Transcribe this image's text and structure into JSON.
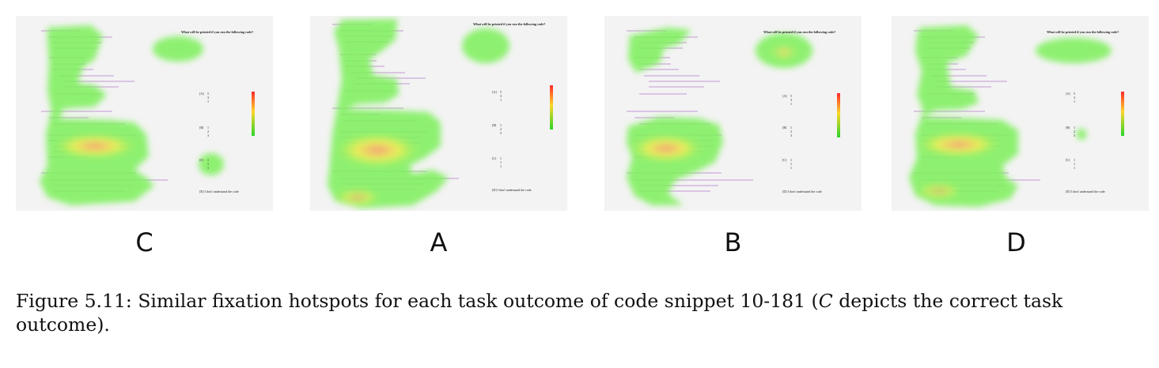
{
  "panels": [
    {
      "label": "C",
      "header_lines": [
        "",
        ""
      ],
      "question": "What will be printed if you run the following code?",
      "options": [
        "[A]",
        "[B]",
        "[C]",
        "[D] I don't understand the code"
      ],
      "option_values": [
        [
          "5",
          "3",
          "1"
        ],
        [
          "1",
          "2",
          "3"
        ],
        [
          "1",
          "1",
          "1"
        ]
      ],
      "legend": {
        "max": "",
        "axis": "",
        "min": ""
      }
    },
    {
      "label": "A",
      "header_lines": [],
      "question": "What will be printed if you run the following code?",
      "options": [
        "[A]",
        "[B]",
        "[C]",
        "[D] I don't understand the code"
      ],
      "option_values": [
        [
          "5",
          "3",
          "1"
        ],
        [
          "1",
          "2",
          "3"
        ],
        [
          "1",
          "1",
          "1"
        ]
      ],
      "legend": {
        "max": "",
        "axis": "",
        "min": ""
      }
    },
    {
      "label": "B",
      "header_lines": [
        "",
        ""
      ],
      "question": "What will be printed if you run the following code?",
      "options": [
        "[A]",
        "[B]",
        "[C]",
        "[D] I don't understand the code"
      ],
      "option_values": [
        [
          "5",
          "3",
          "1"
        ],
        [
          "1",
          "2",
          "3"
        ],
        [
          "1",
          "1",
          "1"
        ]
      ],
      "legend": {
        "max": "",
        "axis": "",
        "min": ""
      }
    },
    {
      "label": "D",
      "header_lines": [
        "",
        ""
      ],
      "question": "What will be printed if you run the following code?",
      "options": [
        "[A]",
        "[B]",
        "[C]",
        "[D] I don't understand the code"
      ],
      "option_values": [
        [
          "5",
          "3",
          "1"
        ],
        [
          "1",
          "2",
          "3"
        ],
        [
          "1",
          "1",
          "1"
        ]
      ],
      "legend": {
        "max": "",
        "axis": "",
        "min": ""
      }
    }
  ],
  "caption": {
    "part1": "Figure 5.11: Similar fixation hotspots for each task outcome of code snippet 10-181 (",
    "emph": "C",
    "part2": " depicts the correct task outcome)."
  },
  "colors": {
    "heat_low": "#7cf05a",
    "heat_mid": "#e8ef5a",
    "heat_high": "#f5a07a",
    "header_red": "#ff2020"
  }
}
